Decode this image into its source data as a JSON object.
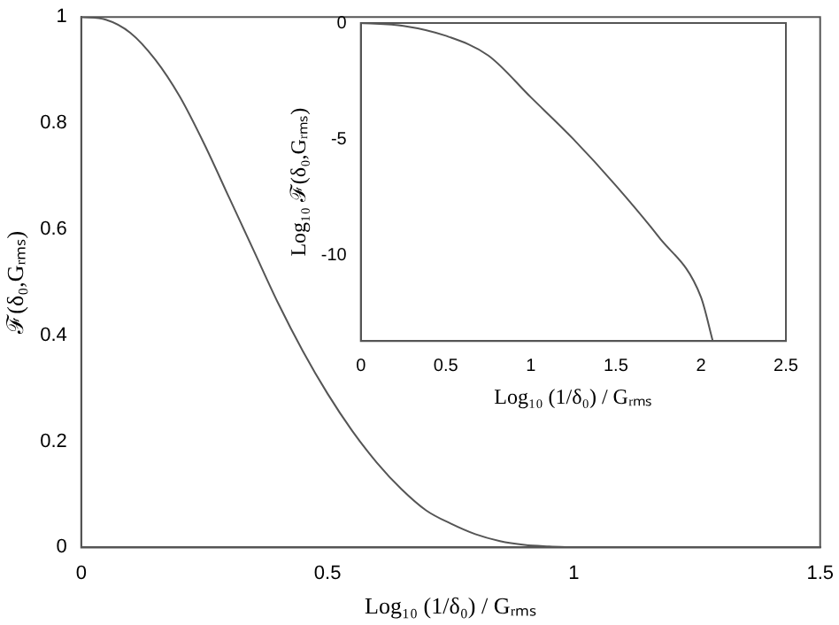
{
  "chart_data": [
    {
      "type": "line",
      "xlabel": "Log₁₀ (1/δ₀) / Gᵣₘₛ",
      "ylabel": "ℱ(δ₀,Gᵣₘₛ)",
      "x": [
        0,
        0.05,
        0.1,
        0.15,
        0.2,
        0.25,
        0.3,
        0.35,
        0.4,
        0.45,
        0.5,
        0.55,
        0.6,
        0.65,
        0.7,
        0.75,
        0.8,
        0.85,
        0.9,
        0.95,
        1.0
      ],
      "series": [
        {
          "color": "#555555",
          "values": [
            1,
            0.995,
            0.97,
            0.92,
            0.85,
            0.76,
            0.66,
            0.56,
            0.46,
            0.37,
            0.29,
            0.22,
            0.16,
            0.11,
            0.07,
            0.045,
            0.025,
            0.012,
            0.005,
            0.002,
            0
          ]
        }
      ],
      "xlim": [
        0,
        1.5
      ],
      "xticks": [
        0,
        0.5,
        1,
        1.5
      ],
      "ylim": [
        0,
        1
      ],
      "yticks": [
        0,
        0.2,
        0.4,
        0.6,
        0.8,
        1
      ],
      "grid": false,
      "legend": false,
      "marker": "none",
      "line_style": "solid"
    },
    {
      "type": "line",
      "xlabel": "Log₁₀ (1/δ₀) / Gᵣₘₛ",
      "ylabel": "Log₁₀ ℱ(δ₀,Gᵣₘₛ)",
      "x": [
        0,
        0.25,
        0.5,
        0.75,
        1,
        1.25,
        1.5,
        1.75,
        2,
        2.07
      ],
      "series": [
        {
          "color": "#555555",
          "values": [
            0,
            -0.12,
            -0.55,
            -1.4,
            -3.2,
            -5.0,
            -7.0,
            -9.2,
            -11.8,
            -13.7
          ]
        }
      ],
      "xlim": [
        0,
        2.5
      ],
      "xticks": [
        0,
        0.5,
        1,
        1.5,
        2,
        2.5
      ],
      "ylim": [
        -13.7,
        0
      ],
      "yticks": [
        0,
        -5,
        -10
      ],
      "grid": false,
      "legend": false,
      "marker": "none",
      "line_style": "solid"
    }
  ]
}
